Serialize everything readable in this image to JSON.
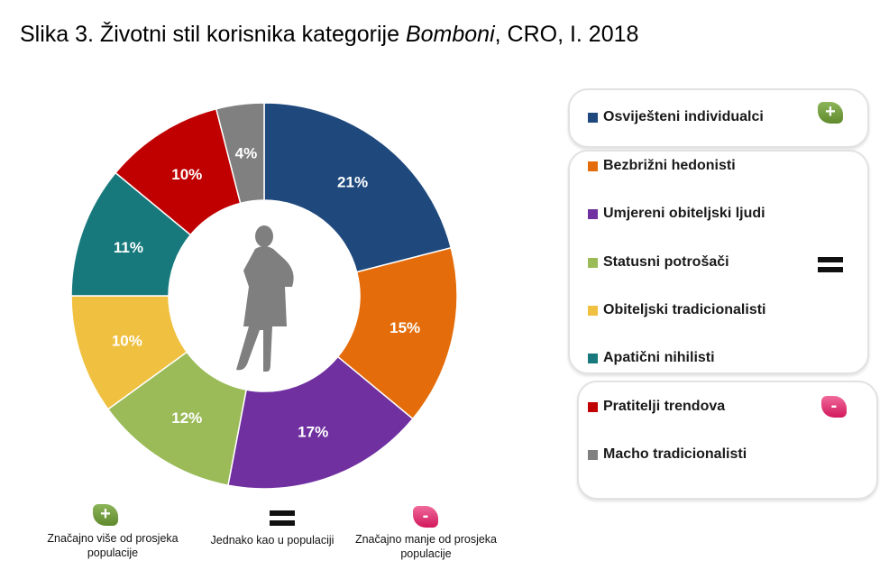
{
  "title": {
    "prefix": "Slika 3. Životni stil korisnika kategorije ",
    "italic": "Bomboni",
    "suffix": ", CRO, I. 2018"
  },
  "chart_data": {
    "type": "pie",
    "variant": "donut",
    "categories": [
      "Osviješteni individualci",
      "Bezbrižni hedonisti",
      "Umjereni obiteljski ljudi",
      "Statusni potrošači",
      "Obiteljski tradicionalisti",
      "Apatični nihilisti",
      "Pratitelji trendova",
      "Macho tradicionalisti"
    ],
    "values": [
      21,
      15,
      17,
      12,
      10,
      11,
      10,
      4
    ],
    "labels": [
      "21%",
      "15%",
      "17%",
      "12%",
      "10%",
      "11%",
      "10%",
      "4%"
    ],
    "colors": [
      "#1f497d",
      "#e46c0a",
      "#7030a0",
      "#9bbb59",
      "#f0c040",
      "#17797c",
      "#c00000",
      "#808080"
    ],
    "groups": [
      "plus",
      "equal",
      "equal",
      "equal",
      "equal",
      "equal",
      "minus",
      "minus"
    ],
    "legend_position": "right"
  },
  "legend_notes": {
    "plus": "Značajno više od prosjeka populacije",
    "equal": "Jednako kao u populaciji",
    "minus": "Značajno manje od prosjeka populacije"
  },
  "badges": {
    "plus": "+",
    "minus": "-"
  }
}
